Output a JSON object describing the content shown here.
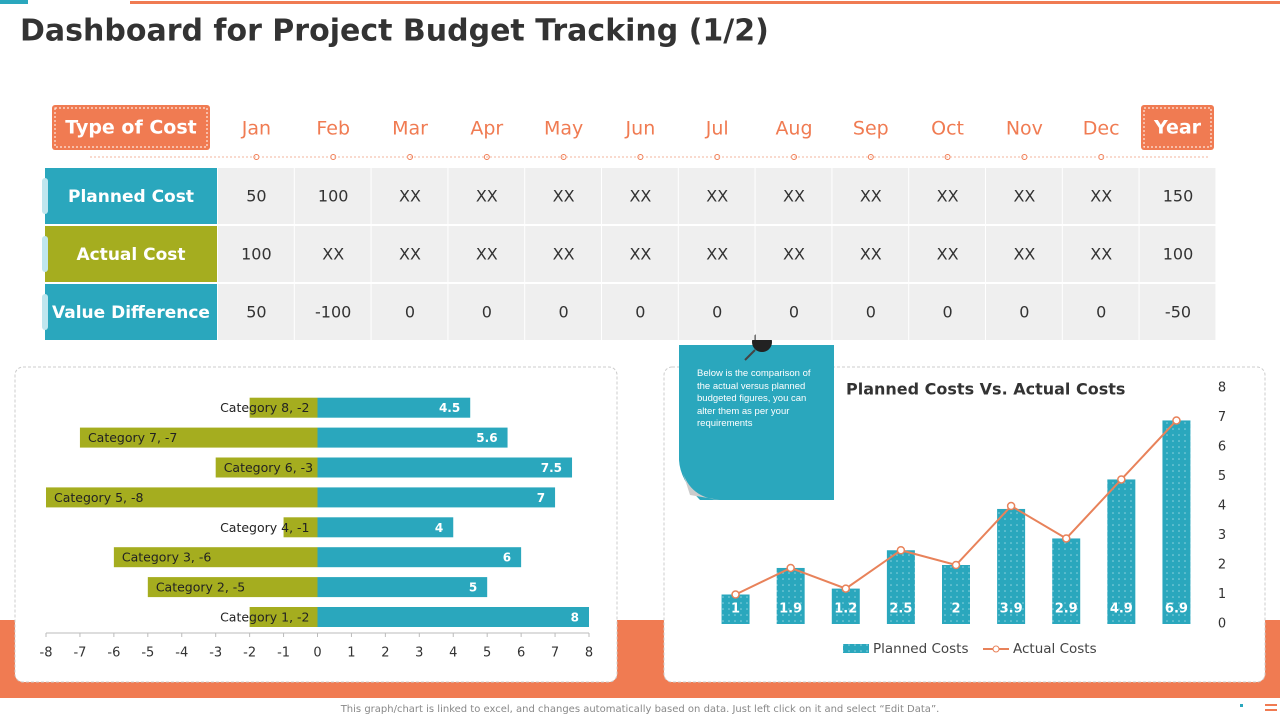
{
  "title": "Dashboard for Project Budget Tracking (1/2)",
  "table": {
    "header": [
      "Type of Cost",
      "Jan",
      "Feb",
      "Mar",
      "Apr",
      "May",
      "Jun",
      "Jul",
      "Aug",
      "Sep",
      "Oct",
      "Nov",
      "Dec",
      "Year"
    ],
    "rows": [
      [
        "Planned Cost",
        50,
        100,
        "XX",
        "XX",
        "XX",
        "XX",
        "XX",
        "XX",
        "XX",
        "XX",
        "XX",
        "XX",
        150
      ],
      [
        "Actual Cost",
        100,
        "XX",
        "XX",
        "XX",
        "XX",
        "XX",
        "XX",
        "XX",
        "XX",
        "XX",
        "XX",
        "XX",
        100
      ],
      [
        "Value Difference",
        50,
        -100,
        0,
        0,
        0,
        0,
        0,
        0,
        0,
        0,
        0,
        0,
        -50
      ]
    ]
  },
  "note": "Below is the comparison of the actual versus planned budgeted figures, you can alter them as per your requirements",
  "footer": "This graph/chart is linked to excel, and changes automatically based on data. Just left click on it and select “Edit Data”.",
  "chart_data": [
    {
      "type": "hbar",
      "series": [
        {
          "color": "#a5ad1f",
          "values": [
            -2,
            -5,
            -6,
            -1,
            -8,
            -3,
            -7,
            -2
          ],
          "value_labels": [
            "Category 1, -2",
            "Category 2, -5",
            "Category 3, -6",
            "Category 4, -1",
            "Category 5, -8",
            "Category 6, -3",
            "Category 7, -7",
            "Category 8, -2"
          ]
        },
        {
          "color": "#2aa7bd",
          "values": [
            8,
            5,
            6,
            4,
            7,
            7.5,
            5.6,
            4.5
          ]
        }
      ],
      "xlim": [
        -8,
        8
      ],
      "xticks": [
        -8,
        -7,
        -6,
        -5,
        -4,
        -3,
        -2,
        -1,
        0,
        1,
        2,
        3,
        4,
        5,
        6,
        7,
        8
      ]
    },
    {
      "type": "combo",
      "title": "Planned Costs Vs. Actual Costs",
      "categories": [
        null,
        null,
        null,
        null,
        null,
        null,
        null,
        null,
        null
      ],
      "series": [
        {
          "name": "Planned Costs",
          "type": "bar",
          "color": "#2aa7bd",
          "values": [
            1,
            1.9,
            1.2,
            2.5,
            2,
            3.9,
            2.9,
            4.9,
            6.9
          ]
        },
        {
          "name": "Actual Costs",
          "type": "line",
          "color": "#e8825a",
          "values": [
            1,
            1.9,
            1.2,
            2.5,
            2,
            4,
            2.9,
            4.9,
            6.9
          ]
        }
      ],
      "ylim": [
        0,
        8
      ],
      "yticks": [
        0,
        1,
        2,
        3,
        4,
        5,
        6,
        7,
        8
      ]
    }
  ]
}
